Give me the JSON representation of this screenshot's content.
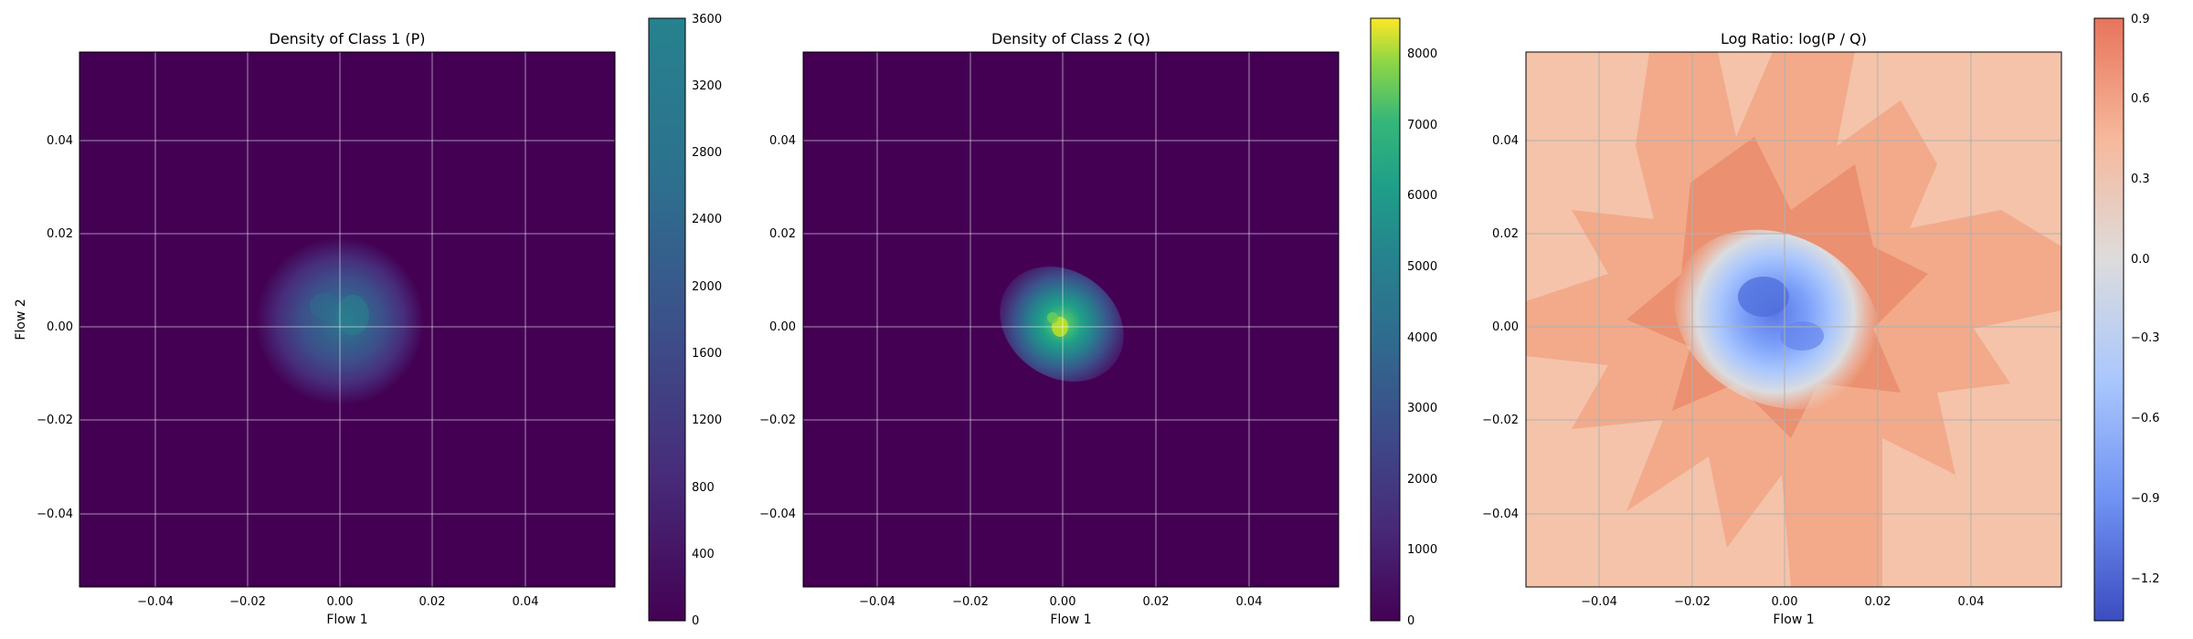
{
  "chart_data": [
    {
      "type": "heatmap",
      "title": "Density of Class 1 (P)",
      "xlabel": "Flow 1",
      "ylabel": "Flow 2",
      "xlim": [
        -0.058,
        0.058
      ],
      "ylim": [
        -0.058,
        0.058
      ],
      "xticks": [
        "−0.04",
        "−0.02",
        "0.00",
        "0.02",
        "0.04"
      ],
      "yticks": [
        "−0.04",
        "−0.02",
        "0.00",
        "0.02",
        "0.04"
      ],
      "grid": true,
      "colormap": "viridis",
      "colorbar": {
        "min": 0,
        "max": 3600,
        "ticks": [
          "0",
          "400",
          "800",
          "1200",
          "1600",
          "2000",
          "2400",
          "2800",
          "3200",
          "3600"
        ]
      },
      "peak_density": 3500
    },
    {
      "type": "heatmap",
      "title": "Density of Class 2 (Q)",
      "xlabel": "Flow 1",
      "ylabel": "",
      "xlim": [
        -0.058,
        0.058
      ],
      "ylim": [
        -0.058,
        0.058
      ],
      "xticks": [
        "−0.04",
        "−0.02",
        "0.00",
        "0.02",
        "0.04"
      ],
      "yticks": [
        "−0.04",
        "−0.02",
        "0.00",
        "0.02",
        "0.04"
      ],
      "grid": true,
      "colormap": "viridis",
      "colorbar": {
        "min": 0,
        "max": 8500,
        "ticks": [
          "0",
          "1000",
          "2000",
          "3000",
          "4000",
          "5000",
          "6000",
          "7000",
          "8000"
        ]
      },
      "peak_density": 7400
    },
    {
      "type": "heatmap",
      "title": "Log Ratio: log(P / Q)",
      "xlabel": "Flow 1",
      "ylabel": "",
      "xlim": [
        -0.058,
        0.058
      ],
      "ylim": [
        -0.058,
        0.058
      ],
      "xticks": [
        "−0.04",
        "−0.02",
        "0.00",
        "0.02",
        "0.04"
      ],
      "yticks": [
        "−0.04",
        "−0.02",
        "0.00",
        "0.02",
        "0.04"
      ],
      "grid": true,
      "colormap": "coolwarm",
      "colorbar": {
        "min": -1.35,
        "max": 0.9,
        "ticks": [
          "−1.2",
          "−0.9",
          "−0.6",
          "−0.3",
          "0.0",
          "0.3",
          "0.6",
          "0.9"
        ]
      },
      "background_level": 0.35,
      "min_level": -1.25
    }
  ]
}
